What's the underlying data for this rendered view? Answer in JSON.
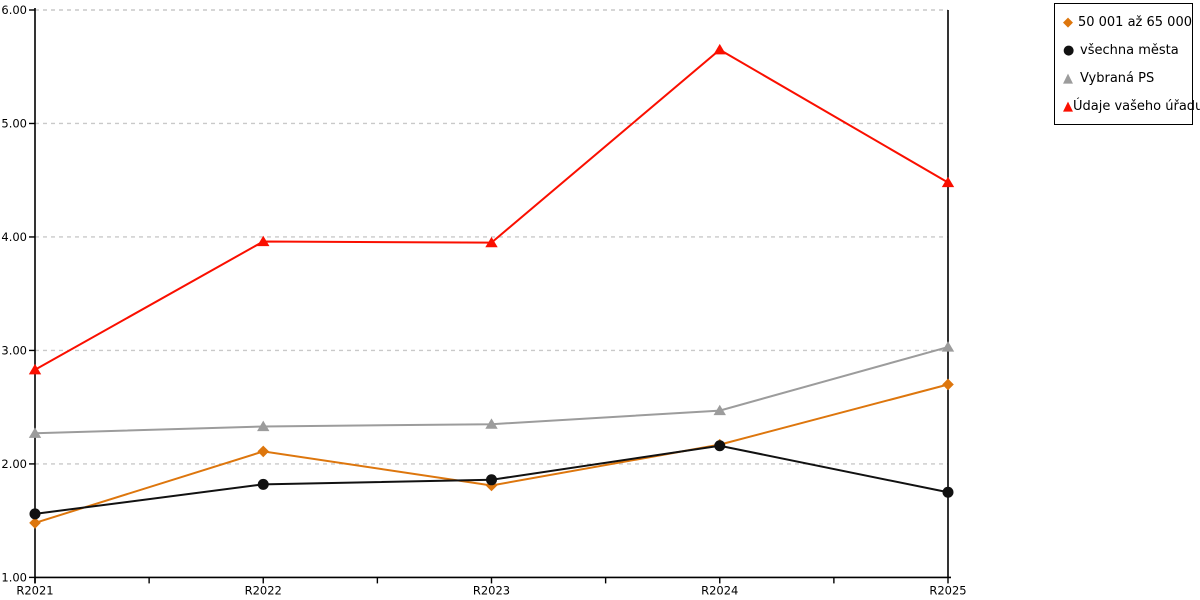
{
  "chart_data": {
    "type": "line",
    "title": "",
    "xlabel": "",
    "ylabel": "",
    "categories": [
      "R2021",
      "R2022",
      "R2023",
      "R2024",
      "R2025"
    ],
    "y_ticks": [
      "1.00",
      "2.00",
      "3.00",
      "4.00",
      "5.00",
      "6.00"
    ],
    "ylim": [
      1.0,
      6.0
    ],
    "grid": "horizontal-dashed",
    "legend_position": "top-right",
    "gridline_color": "#C9C9C9",
    "axis_color": "#000000",
    "series": [
      {
        "name": "50 001 až 65 000",
        "marker": "diamond",
        "glyph": "◆",
        "color": "#DD760D",
        "values": [
          1.48,
          2.11,
          1.81,
          2.17,
          2.7
        ]
      },
      {
        "name": "všechna města",
        "marker": "circle",
        "glyph": "●",
        "color": "#111111",
        "values": [
          1.56,
          1.82,
          1.86,
          2.16,
          1.75
        ]
      },
      {
        "name": "Vybraná PS",
        "marker": "triangle",
        "glyph": "▲",
        "color": "#9C9C9C",
        "values": [
          2.27,
          2.33,
          2.35,
          2.47,
          3.03
        ]
      },
      {
        "name": "Údaje vašeho úřadu",
        "marker": "triangle",
        "glyph": "▲",
        "color": "#FA0F00",
        "values": [
          2.83,
          3.96,
          3.95,
          5.65,
          4.48
        ]
      }
    ]
  }
}
